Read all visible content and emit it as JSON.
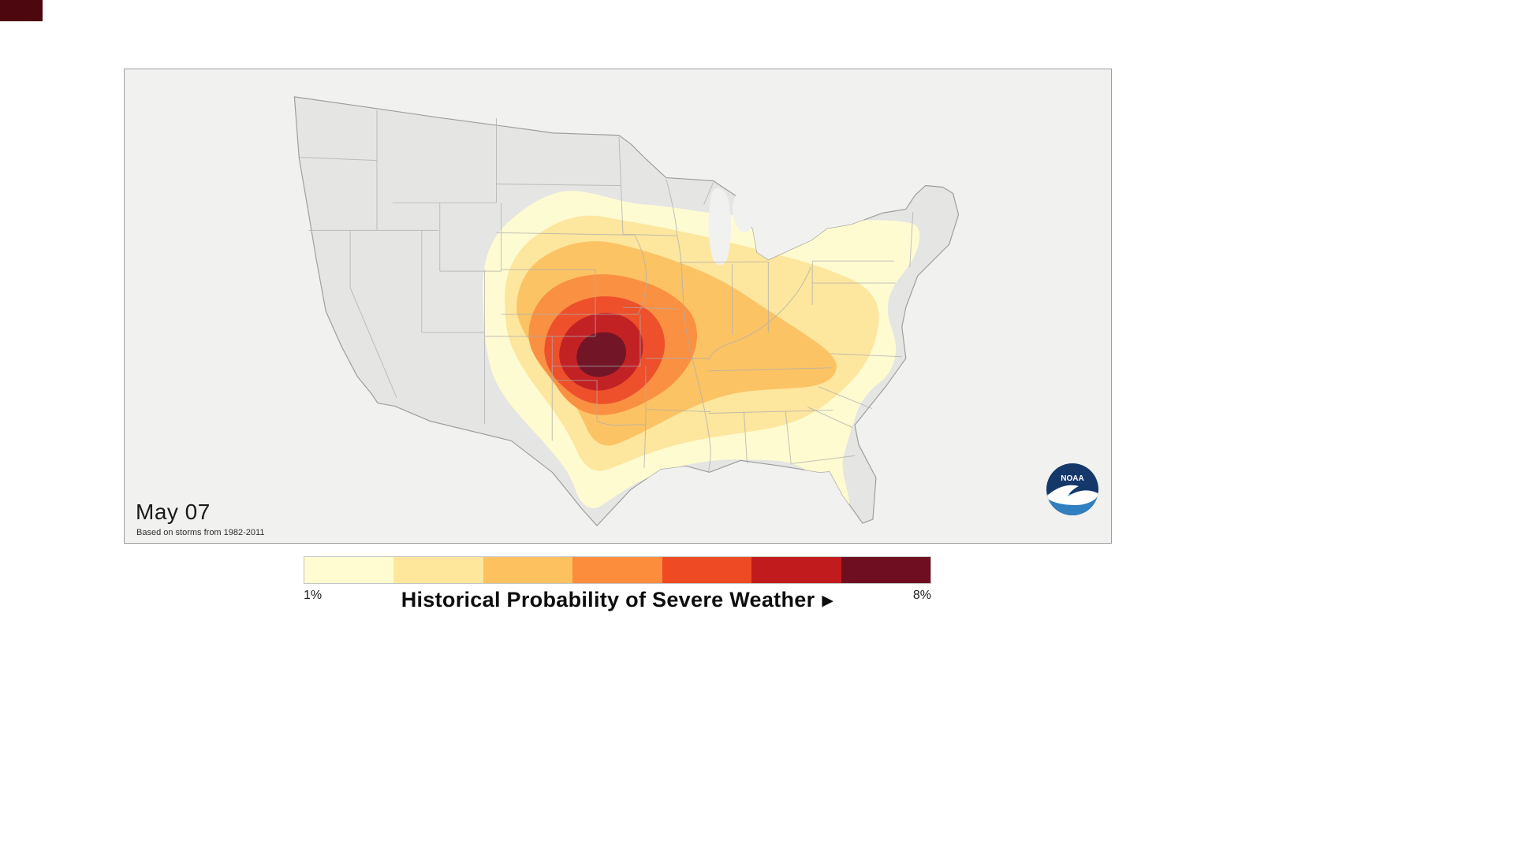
{
  "window": {
    "background_color": "#ffffff",
    "artifact_color": "#4d070f"
  },
  "map": {
    "date_label": "May 07",
    "source_note": "Based on storms from 1982-2011",
    "logo_text": "NOAA",
    "region": "United States",
    "colors": {
      "background": "#f1f1ef",
      "land": "#e5e5e3",
      "outline": "#9e9e9e",
      "state_line": "#aeaeae",
      "lake": "#f1f1ef",
      "logo_dark": "#15386a",
      "logo_light": "#2f7fc1",
      "logo_white": "#ffffff"
    }
  },
  "legend": {
    "title": "Historical Probability of Severe Weather",
    "arrow": "▶",
    "min_label": "1%",
    "max_label": "8%",
    "colors": [
      "#FFFCD1",
      "#FEE79B",
      "#FDC25F",
      "#FB8D3C",
      "#EE4A23",
      "#C21B1E",
      "#6E0E20"
    ],
    "scale": {
      "min_percent": 1,
      "max_percent": 8,
      "levels": 7
    }
  },
  "chart_data": {
    "type": "contour-map",
    "title": "Historical Probability of Severe Weather",
    "date": "May 07",
    "source": "Based on storms from 1982-2011",
    "scale_min_label": "1%",
    "scale_max_label": "8%",
    "contour_center_region": "Oklahoma / southern Great Plains",
    "levels_percent": [
      1,
      2,
      3,
      4,
      5,
      6,
      8
    ],
    "level_colors": [
      "#FFFCD1",
      "#FEE79B",
      "#FDC25F",
      "#FB8D3C",
      "#EE4A23",
      "#C21B1E",
      "#6E0E20"
    ]
  }
}
